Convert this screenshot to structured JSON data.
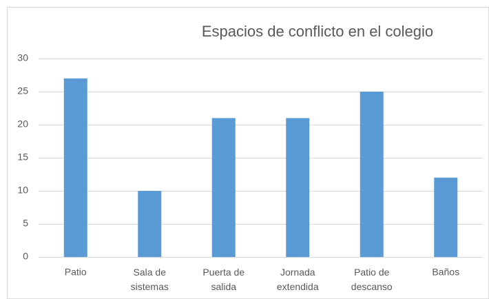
{
  "chart_data": {
    "type": "bar",
    "title": "Espacios de conflicto en el colegio",
    "categories": [
      "Patio",
      "Sala de sistemas",
      "Puerta de salida",
      "Jornada extendida",
      "Patio de descanso",
      "Baños"
    ],
    "values": [
      27,
      10,
      21,
      21,
      25,
      12
    ],
    "color": "#5b9bd5",
    "ylim": [
      0,
      30
    ],
    "yticks": [
      0,
      5,
      10,
      15,
      20,
      25,
      30
    ],
    "grid": true
  }
}
